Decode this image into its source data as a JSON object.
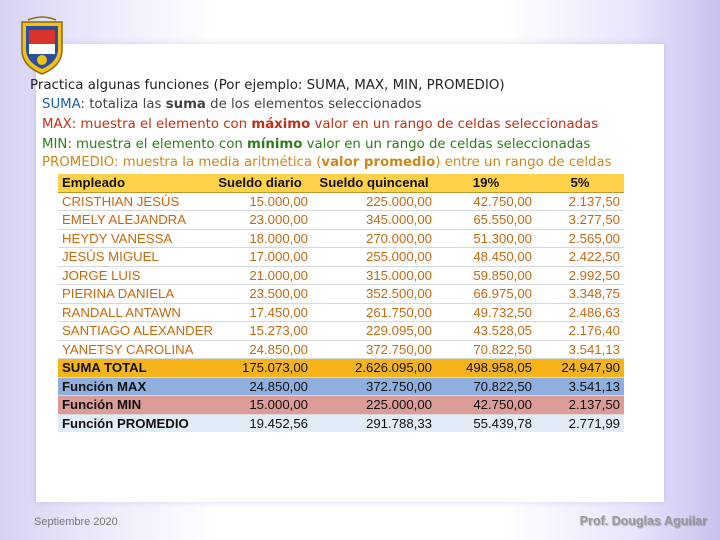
{
  "heading": "Practica algunas funciones (Por ejemplo: SUMA, MAX, MIN, PROMEDIO)",
  "definitions": {
    "suma": {
      "term": "SUMA",
      "text_a": ": totaliza las ",
      "bold": "suma",
      "text_b": " de los elementos seleccionados"
    },
    "max": {
      "term": "MAX",
      "text_a": ": muestra el elemento con ",
      "bold": "máximo",
      "text_b": " valor en un rango de celdas seleccionadas"
    },
    "min": {
      "term": "MIN",
      "text_a": ": muestra el elemento con ",
      "bold": "mínimo",
      "text_b": " valor en un rango de celdas seleccionadas"
    },
    "promedio": {
      "term": "PROMEDIO",
      "text_a": ": muestra la media aritmética (",
      "bold": "valor promedio",
      "text_b": ") entre un rango de celdas"
    }
  },
  "table": {
    "headers": [
      "Empleado",
      "Sueldo diario",
      "Sueldo quincenal",
      "19%",
      "5%"
    ],
    "employees": [
      [
        "CRISTHIAN JESÚS",
        "15.000,00",
        "225.000,00",
        "42.750,00",
        "2.137,50"
      ],
      [
        "EMELY ALEJANDRA",
        "23.000,00",
        "345.000,00",
        "65.550,00",
        "3.277,50"
      ],
      [
        "HEYDY VANESSA",
        "18.000,00",
        "270.000,00",
        "51.300,00",
        "2.565,00"
      ],
      [
        "JESÚS MIGUEL",
        "17.000,00",
        "255.000,00",
        "48.450,00",
        "2.422,50"
      ],
      [
        "JORGE LUIS",
        "21.000,00",
        "315.000,00",
        "59.850,00",
        "2.992,50"
      ],
      [
        "PIERINA DANIELA",
        "23.500,00",
        "352.500,00",
        "66.975,00",
        "3.348,75"
      ],
      [
        "RANDALL ANTAWN",
        "17.450,00",
        "261.750,00",
        "49.732,50",
        "2.486,63"
      ],
      [
        "SANTIAGO ALEXANDER",
        "15.273,00",
        "229.095,00",
        "43.528,05",
        "2.176,40"
      ],
      [
        "YANETSY CAROLINA",
        "24.850,00",
        "372.750,00",
        "70.822,50",
        "3.541,13"
      ]
    ],
    "summary": {
      "suma": [
        "SUMA TOTAL",
        "175.073,00",
        "2.626.095,00",
        "498.958,05",
        "24.947,90"
      ],
      "max": [
        "Función MAX",
        "24.850,00",
        "372.750,00",
        "70.822,50",
        "3.541,13"
      ],
      "min": [
        "Función MIN",
        "15.000,00",
        "225.000,00",
        "42.750,00",
        "2.137,50"
      ],
      "promedio": [
        "Función PROMEDIO",
        "19.452,56",
        "291.788,33",
        "55.439,78",
        "2.771,99"
      ]
    }
  },
  "footer": {
    "date": "Septiembre 2020",
    "author": "Prof. Douglas Aguilar"
  },
  "colors": {
    "header_row": "#ffd24a",
    "suma_row": "#f5b41a",
    "max_row": "#8fb0de",
    "min_row": "#dc9d98",
    "promedio_row": "#e2ecf7"
  }
}
